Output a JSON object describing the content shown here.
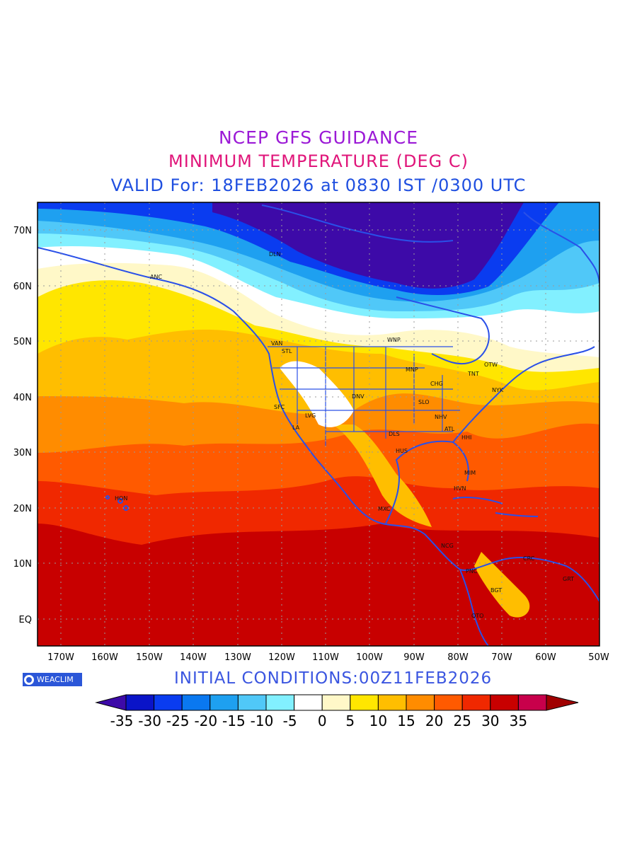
{
  "title": {
    "line1": "NCEP GFS GUIDANCE",
    "line2": "MINIMUM TEMPERATURE (DEG C)",
    "line3": "VALID For: 18FEB2026 at 0830 IST /0300 UTC"
  },
  "map": {
    "lat_labels": [
      "70N",
      "60N",
      "50N",
      "40N",
      "30N",
      "20N",
      "10N",
      "EQ"
    ],
    "lon_labels": [
      "170W",
      "160W",
      "150W",
      "140W",
      "130W",
      "120W",
      "110W",
      "100W",
      "90W",
      "80W",
      "70W",
      "60W",
      "50W"
    ],
    "cities": [
      "DLN",
      "ANC",
      "VAN",
      "STL",
      "WNP",
      "MNP",
      "OTW",
      "TNT",
      "CHG",
      "NYK",
      "DNV",
      "SFC",
      "LVG",
      "LA",
      "SLO",
      "NHV",
      "DLS",
      "ATL",
      "HHI",
      "HUS",
      "MIM",
      "HVN",
      "HON",
      "MXC",
      "NCG",
      "PNC",
      "CRC",
      "BGT",
      "GRT",
      "QTO"
    ]
  },
  "footer": {
    "badge": "WEACLIM",
    "initial_conditions": "INITIAL  CONDITIONS:00Z11FEB2026"
  },
  "colorbar": {
    "labels": [
      "-35",
      "-30",
      "-25",
      "-20",
      "-15",
      "-10",
      "-5",
      "0",
      "5",
      "10",
      "15",
      "20",
      "25",
      "30",
      "35"
    ],
    "colors": [
      "#3d0aa8",
      "#0a14c8",
      "#0a3cf0",
      "#0a78f0",
      "#1ea0f0",
      "#50c8f8",
      "#82f0ff",
      "#ffffff",
      "#fff8c8",
      "#ffe600",
      "#ffbe00",
      "#ff8c00",
      "#ff5a00",
      "#f02800",
      "#c80000",
      "#c8004b",
      "#a00000"
    ]
  }
}
